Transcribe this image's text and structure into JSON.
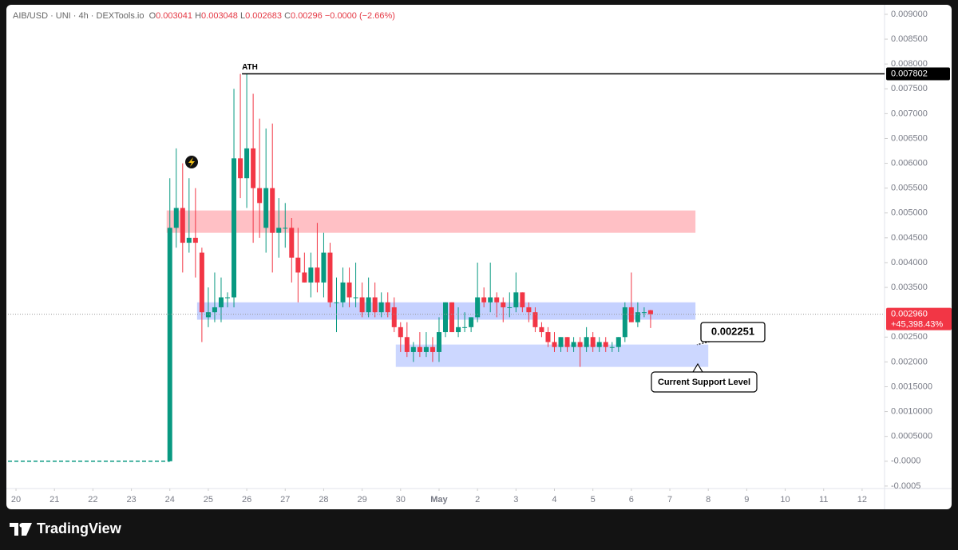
{
  "chart_data": {
    "type": "candlestick",
    "symbol": "AIB/USD · UNI · 4h · DEXTools.io",
    "ohlc_letters": [
      "O",
      "H",
      "L",
      "C"
    ],
    "change": "−0.0000 (−2.66%)",
    "x": [
      96,
      100,
      104,
      108,
      112,
      116,
      120,
      124,
      128,
      132,
      136,
      140,
      144,
      148,
      152,
      156,
      160,
      164,
      168,
      172,
      176,
      180,
      184,
      188,
      192,
      196,
      200,
      204,
      208,
      212,
      216,
      220,
      224,
      228,
      232,
      236,
      240,
      244,
      248,
      252,
      256,
      260,
      264,
      268,
      272,
      276,
      280,
      284,
      288,
      292,
      296,
      300,
      304,
      308,
      312,
      316,
      320,
      324,
      328,
      332,
      336,
      340,
      344,
      348,
      352,
      356,
      360,
      364,
      368,
      372,
      376,
      380,
      384,
      388,
      392,
      396
    ],
    "open": [
      0,
      0.0047,
      0.0051,
      0.0044,
      0.0045,
      0.0042,
      0.0029,
      0.003,
      0.0031,
      0.0033,
      0.0033,
      0.0061,
      0.0057,
      0.0063,
      0.0055,
      0.0047,
      0.0055,
      0.0046,
      0.0047,
      0.0047,
      0.0041,
      0.0038,
      0.0036,
      0.0039,
      0.0036,
      0.0042,
      0.0032,
      0.0032,
      0.0036,
      0.0033,
      0.0033,
      0.003,
      0.0033,
      0.003,
      0.0032,
      0.0031,
      0.0027,
      0.0025,
      0.0022,
      0.0023,
      0.0022,
      0.0023,
      0.0022,
      0.0026,
      0.0032,
      0.0026,
      0.0027,
      0.0027,
      0.0029,
      0.0033,
      0.0032,
      0.0033,
      0.0032,
      0.0031,
      0.0031,
      0.0034,
      0.0031,
      0.003,
      0.0027,
      0.0026,
      0.0024,
      0.0023,
      0.0025,
      0.0023,
      0.0024,
      0.0023,
      0.0025,
      0.0023,
      0.0024,
      0.0023,
      0.0023,
      0.0025,
      0.0031,
      0.0028,
      0.003,
      0.003041
    ],
    "high": [
      0.0057,
      0.0063,
      0.006,
      0.0057,
      0.0055,
      0.0043,
      0.0035,
      0.0038,
      0.0037,
      0.0034,
      0.0075,
      0.0078,
      0.007802,
      0.0074,
      0.0069,
      0.0067,
      0.0068,
      0.0053,
      0.0052,
      0.0049,
      0.0047,
      0.0042,
      0.0042,
      0.0048,
      0.0046,
      0.0044,
      0.0037,
      0.0039,
      0.0039,
      0.004,
      0.0036,
      0.0037,
      0.0036,
      0.0034,
      0.0034,
      0.0033,
      0.0028,
      0.0028,
      0.0024,
      0.0026,
      0.0026,
      0.0025,
      0.0029,
      0.0032,
      0.0032,
      0.0031,
      0.003,
      0.0029,
      0.004,
      0.0035,
      0.004,
      0.0034,
      0.0033,
      0.0034,
      0.0038,
      0.0034,
      0.0032,
      0.0031,
      0.0028,
      0.0027,
      0.0026,
      0.0025,
      0.0025,
      0.0025,
      0.0025,
      0.0027,
      0.0026,
      0.0025,
      0.0025,
      0.0024,
      0.0025,
      0.0032,
      0.0038,
      0.0032,
      0.0031,
      0.003048
    ],
    "low": [
      0,
      0.0043,
      0.0038,
      0.0042,
      0.0037,
      0.0024,
      0.0027,
      0.0028,
      0.0028,
      0.0031,
      0.0031,
      0.0053,
      0.0051,
      0.0044,
      0.0045,
      0.0042,
      0.0038,
      0.0041,
      0.0043,
      0.0036,
      0.0032,
      0.0036,
      0.0033,
      0.0034,
      0.0033,
      0.0031,
      0.0026,
      0.0031,
      0.0031,
      0.0031,
      0.0029,
      0.0029,
      0.0029,
      0.0029,
      0.0029,
      0.0026,
      0.0022,
      0.0021,
      0.002,
      0.0021,
      0.0021,
      0.002,
      0.002,
      0.0025,
      0.0026,
      0.0025,
      0.0026,
      0.0026,
      0.0028,
      0.0031,
      0.003,
      0.0029,
      0.0028,
      0.0029,
      0.003,
      0.003,
      0.0028,
      0.0026,
      0.0025,
      0.0023,
      0.0022,
      0.0022,
      0.0022,
      0.0022,
      0.0019,
      0.0022,
      0.0022,
      0.0022,
      0.0022,
      0.0022,
      0.0022,
      0.0024,
      0.0028,
      0.0027,
      0.0029,
      0.002683
    ],
    "close": [
      0.0047,
      0.0051,
      0.0044,
      0.0045,
      0.0044,
      0.003,
      0.003,
      0.0031,
      0.0033,
      0.0033,
      0.0061,
      0.0057,
      0.0063,
      0.0055,
      0.0052,
      0.0055,
      0.0046,
      0.0047,
      0.0047,
      0.0041,
      0.0038,
      0.0036,
      0.0039,
      0.0036,
      0.0042,
      0.0032,
      0.0032,
      0.0036,
      0.0033,
      0.0033,
      0.003,
      0.0033,
      0.003,
      0.0032,
      0.003,
      0.0027,
      0.0025,
      0.0022,
      0.0023,
      0.0022,
      0.0023,
      0.0022,
      0.0026,
      0.0032,
      0.0026,
      0.0027,
      0.0027,
      0.0029,
      0.0033,
      0.0032,
      0.0033,
      0.0032,
      0.0031,
      0.0031,
      0.0034,
      0.0031,
      0.003,
      0.0027,
      0.0026,
      0.0024,
      0.0023,
      0.0025,
      0.0023,
      0.0024,
      0.0023,
      0.0025,
      0.0023,
      0.0024,
      0.0023,
      0.0023,
      0.0025,
      0.0031,
      0.0028,
      0.003,
      0.003,
      0.00296
    ],
    "up_color": "#089981",
    "down_color": "#f23645",
    "xlim": [
      -5,
      542
    ],
    "xticks": [
      {
        "value": 0,
        "label": "20"
      },
      {
        "value": 24,
        "label": "21"
      },
      {
        "value": 48,
        "label": "22"
      },
      {
        "value": 72,
        "label": "23"
      },
      {
        "value": 96,
        "label": "24"
      },
      {
        "value": 120,
        "label": "25"
      },
      {
        "value": 144,
        "label": "26"
      },
      {
        "value": 168,
        "label": "27"
      },
      {
        "value": 192,
        "label": "28"
      },
      {
        "value": 216,
        "label": "29"
      },
      {
        "value": 240,
        "label": "30"
      },
      {
        "value": 264,
        "label": "May"
      },
      {
        "value": 288,
        "label": "2"
      },
      {
        "value": 312,
        "label": "3"
      },
      {
        "value": 336,
        "label": "4"
      },
      {
        "value": 360,
        "label": "5"
      },
      {
        "value": 384,
        "label": "6"
      },
      {
        "value": 408,
        "label": "7"
      },
      {
        "value": 432,
        "label": "8"
      },
      {
        "value": 456,
        "label": "9"
      },
      {
        "value": 480,
        "label": "10"
      },
      {
        "value": 504,
        "label": "11"
      },
      {
        "value": 528,
        "label": "12"
      }
    ],
    "ylim": [
      -0.00055,
      0.00916
    ],
    "yticks": [
      {
        "value": -0.0005,
        "label": "-0.0005"
      },
      {
        "value": 0,
        "label": "-0.0000"
      },
      {
        "value": 0.0005,
        "label": "0.0005000"
      },
      {
        "value": 0.001,
        "label": "0.0010000"
      },
      {
        "value": 0.0015,
        "label": "0.0015000"
      },
      {
        "value": 0.002,
        "label": "0.002000"
      },
      {
        "value": 0.0025,
        "label": "0.002500"
      },
      {
        "value": 0.0035,
        "label": "0.003500"
      },
      {
        "value": 0.004,
        "label": "0.004000"
      },
      {
        "value": 0.0045,
        "label": "0.004500"
      },
      {
        "value": 0.005,
        "label": "0.005000"
      },
      {
        "value": 0.0055,
        "label": "0.005500"
      },
      {
        "value": 0.006,
        "label": "0.006000"
      },
      {
        "value": 0.0065,
        "label": "0.006500"
      },
      {
        "value": 0.007,
        "label": "0.007000"
      },
      {
        "value": 0.0075,
        "label": "0.007500"
      },
      {
        "value": 0.008,
        "label": "0.008000"
      },
      {
        "value": 0.0085,
        "label": "0.008500"
      },
      {
        "value": 0.009,
        "label": "0.009000"
      }
    ],
    "last_price_label": "0.002960",
    "last_change_label": "+45,398.43%",
    "ath": {
      "label": "ATH",
      "value": 0.007802
    },
    "zones": [
      {
        "x": [
          94,
          424
        ],
        "y": [
          0.0046,
          0.00505
        ],
        "color": "rgba(255,130,140,0.5)"
      },
      {
        "x": [
          113,
          424
        ],
        "y": [
          0.00285,
          0.0032
        ],
        "color": "rgba(110,140,255,0.4)"
      },
      {
        "x": [
          237,
          432
        ],
        "y": [
          0.0019,
          0.00235
        ],
        "color": "rgba(110,140,255,0.35)"
      }
    ],
    "support": {
      "value": 0.002251,
      "label": "Current Support Level"
    },
    "brand": "TradingView"
  }
}
